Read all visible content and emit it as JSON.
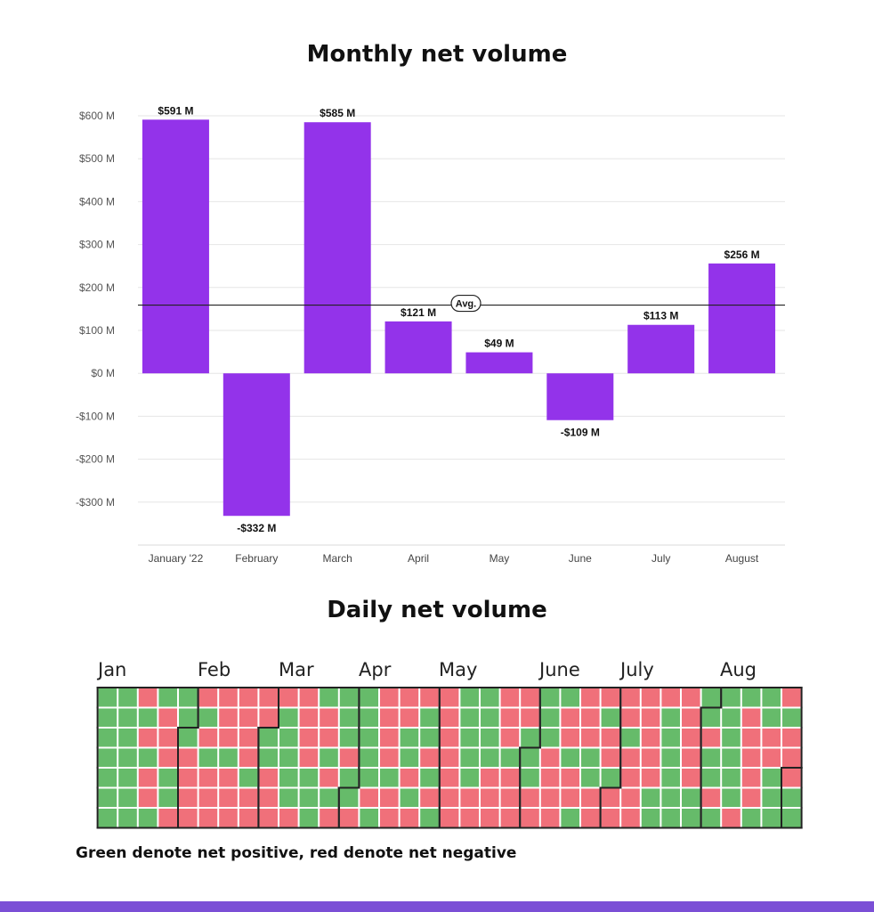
{
  "charts": {
    "monthly": {
      "title": "Monthly net volume"
    },
    "daily": {
      "title": "Daily net volume"
    }
  },
  "caption": "Green denote net positive, red denote net negative",
  "colors": {
    "bar": "#9333ea",
    "positive": "#66bb6a",
    "negative": "#f0707a",
    "footer": "#7b4fd6"
  },
  "chart_data": [
    {
      "type": "bar",
      "title": "Monthly net volume",
      "categories": [
        "January '22",
        "February",
        "March",
        "April",
        "May",
        "June",
        "July",
        "August"
      ],
      "values": [
        591,
        -332,
        585,
        121,
        49,
        -109,
        113,
        256
      ],
      "value_labels": [
        "$591 M",
        "-$332 M",
        "$585 M",
        "$121 M",
        "$49 M",
        "-$109 M",
        "$113 M",
        "$256 M"
      ],
      "yticks": [
        600,
        500,
        400,
        300,
        200,
        100,
        0,
        -100,
        -200,
        -300
      ],
      "ytick_labels": [
        "$600 M",
        "$500 M",
        "$400 M",
        "$300 M",
        "$200 M",
        "$100 M",
        "$0 M",
        "-$100 M",
        "-$200 M",
        "-$300 M"
      ],
      "ylim": [
        -400,
        600
      ],
      "average": 159,
      "average_label": "Avg.",
      "grid": true
    },
    {
      "type": "heatmap",
      "title": "Daily net volume",
      "month_labels": [
        "Jan",
        "Feb",
        "Mar",
        "Apr",
        "May",
        "June",
        "July",
        "Aug"
      ],
      "start_date": "2022-01-01",
      "legend": {
        "positive": "net positive",
        "negative": "net negative"
      },
      "weeks": [
        "-------P",
        "PPPPPPP",
        "PPPPPPP",
        "NPNPNNP",
        "PNNNPPN",
        "PPPNNNN",
        "NPNPNNN",
        "NNNPNNN",
        "NNNNPNN",
        "NNPPNNN",
        "NPPPPPN",
        "NNNNPPP",
        "PNNPNPN",
        "PPPNPPN",
        "PPPPPNP",
        "NNNNPNN",
        "NNPPNPN",
        "NPPNPNP",
        "NNNNNNN",
        "PPPPPNN",
        "PPPPNNN",
        "NNNPNNN",
        "NNPPPNN",
        "PPPNNNN",
        "PNNPNNP",
        "NNNPPNN",
        "NPNNPNN",
        "NNPNNNN",
        "NNNNNPP",
        "NPPPPPP",
        "NNNNNPP",
        "PPNPPNP",
        "PPPPPPN",
        "PNNNNNP",
        "PPNNPPP",
        "NPNNNPP"
      ]
    }
  ]
}
